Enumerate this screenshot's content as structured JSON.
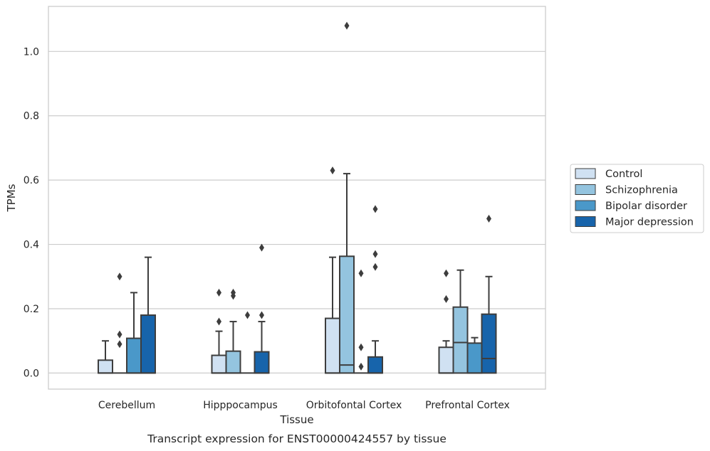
{
  "chart_data": {
    "type": "box",
    "title": "",
    "xlabel": "Tissue",
    "ylabel": "TPMs",
    "caption": "Transcript expression for ENST00000424557 by tissue",
    "ylim": [
      -0.05,
      1.14
    ],
    "yticks": [
      0.0,
      0.2,
      0.4,
      0.6,
      0.8,
      1.0
    ],
    "ytick_labels": [
      "0.0",
      "0.2",
      "0.4",
      "0.6",
      "0.8",
      "1.0"
    ],
    "grid": true,
    "legend_placement": "right",
    "categories": [
      "Cerebellum",
      "Hipppocampus",
      "Orbitofontal Cortex",
      "Prefrontal Cortex"
    ],
    "series": [
      {
        "name": "Control",
        "color": "#d0e1f2",
        "boxes": [
          {
            "category": "Cerebellum",
            "q1": 0.0,
            "median": 0.0,
            "q3": 0.04,
            "whisker_low": 0.0,
            "whisker_high": 0.1,
            "outliers": []
          },
          {
            "category": "Hipppocampus",
            "q1": 0.0,
            "median": 0.0,
            "q3": 0.055,
            "whisker_low": 0.0,
            "whisker_high": 0.13,
            "outliers": [
              0.16,
              0.25
            ]
          },
          {
            "category": "Orbitofontal Cortex",
            "q1": 0.0,
            "median": 0.0,
            "q3": 0.17,
            "whisker_low": 0.0,
            "whisker_high": 0.36,
            "outliers": [
              0.63
            ]
          },
          {
            "category": "Prefrontal Cortex",
            "q1": 0.0,
            "median": 0.0,
            "q3": 0.08,
            "whisker_low": 0.0,
            "whisker_high": 0.1,
            "outliers": [
              0.23,
              0.31
            ]
          }
        ]
      },
      {
        "name": "Schizophrenia",
        "color": "#94c4df",
        "boxes": [
          {
            "category": "Cerebellum",
            "q1": 0.0,
            "median": 0.0,
            "q3": 0.0,
            "whisker_low": 0.0,
            "whisker_high": 0.0,
            "outliers": [
              0.09,
              0.12,
              0.3
            ]
          },
          {
            "category": "Hipppocampus",
            "q1": 0.0,
            "median": 0.0,
            "q3": 0.068,
            "whisker_low": 0.0,
            "whisker_high": 0.16,
            "outliers": [
              0.24,
              0.25
            ]
          },
          {
            "category": "Orbitofontal Cortex",
            "q1": 0.0,
            "median": 0.025,
            "q3": 0.363,
            "whisker_low": 0.0,
            "whisker_high": 0.62,
            "outliers": [
              1.08
            ]
          },
          {
            "category": "Prefrontal Cortex",
            "q1": 0.0,
            "median": 0.095,
            "q3": 0.205,
            "whisker_low": 0.0,
            "whisker_high": 0.32,
            "outliers": []
          }
        ]
      },
      {
        "name": "Bipolar disorder",
        "color": "#4a98c9",
        "boxes": [
          {
            "category": "Cerebellum",
            "q1": 0.0,
            "median": 0.0,
            "q3": 0.108,
            "whisker_low": 0.0,
            "whisker_high": 0.25,
            "outliers": []
          },
          {
            "category": "Hipppocampus",
            "q1": 0.0,
            "median": 0.0,
            "q3": 0.0,
            "whisker_low": 0.0,
            "whisker_high": 0.0,
            "outliers": [
              0.18
            ]
          },
          {
            "category": "Orbitofontal Cortex",
            "q1": 0.0,
            "median": 0.0,
            "q3": 0.0,
            "whisker_low": 0.0,
            "whisker_high": 0.0,
            "outliers": [
              0.02,
              0.08,
              0.31
            ]
          },
          {
            "category": "Prefrontal Cortex",
            "q1": 0.0,
            "median": 0.0,
            "q3": 0.093,
            "whisker_low": 0.0,
            "whisker_high": 0.11,
            "outliers": []
          }
        ]
      },
      {
        "name": "Major depression",
        "color": "#1764ab",
        "boxes": [
          {
            "category": "Cerebellum",
            "q1": 0.0,
            "median": 0.0,
            "q3": 0.18,
            "whisker_low": 0.0,
            "whisker_high": 0.36,
            "outliers": []
          },
          {
            "category": "Hipppocampus",
            "q1": 0.0,
            "median": 0.0,
            "q3": 0.066,
            "whisker_low": 0.0,
            "whisker_high": 0.16,
            "outliers": [
              0.18,
              0.39
            ]
          },
          {
            "category": "Orbitofontal Cortex",
            "q1": 0.0,
            "median": 0.0,
            "q3": 0.05,
            "whisker_low": 0.0,
            "whisker_high": 0.1,
            "outliers": [
              0.33,
              0.37,
              0.51
            ]
          },
          {
            "category": "Prefrontal Cortex",
            "q1": 0.0,
            "median": 0.045,
            "q3": 0.183,
            "whisker_low": 0.0,
            "whisker_high": 0.3,
            "outliers": [
              0.48
            ]
          }
        ]
      }
    ]
  }
}
